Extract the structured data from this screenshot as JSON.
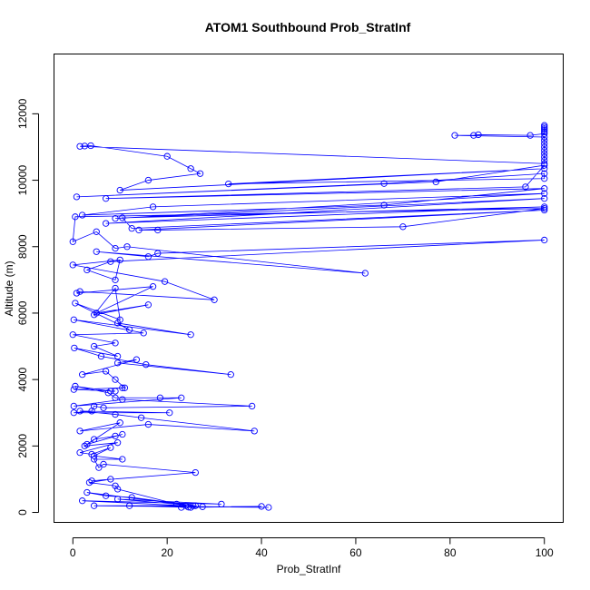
{
  "chart_data": {
    "type": "line",
    "title": "ATOM1 Southbound Prob_StratInf",
    "xlabel": "Prob_StratInf",
    "ylabel": "Altitude (m)",
    "xlim": [
      -4,
      104
    ],
    "ylim": [
      -300,
      13800
    ],
    "xticks": [
      0,
      20,
      40,
      60,
      80,
      100
    ],
    "yticks": [
      0,
      2000,
      4000,
      6000,
      8000,
      10000,
      12000
    ],
    "grid": false,
    "legend": "none",
    "markers": "open-circle",
    "color": "#0000ff",
    "series": [
      {
        "points": [
          [
            100,
            11650
          ],
          [
            100,
            11600
          ],
          [
            100,
            11550
          ],
          [
            100,
            11500
          ],
          [
            100,
            11450
          ],
          [
            100,
            11400
          ],
          [
            97,
            11350
          ],
          [
            86,
            11370
          ],
          [
            85,
            11350
          ],
          [
            81,
            11350
          ],
          [
            100,
            11300
          ],
          [
            100,
            11200
          ],
          [
            100,
            11100
          ],
          [
            100,
            11000
          ],
          [
            100,
            10900
          ],
          [
            100,
            10800
          ],
          [
            100,
            10700
          ],
          [
            100,
            10600
          ],
          [
            100,
            10500
          ],
          [
            1.5,
            11020
          ],
          [
            2.5,
            11030
          ],
          [
            3.8,
            11040
          ],
          [
            20,
            10720
          ],
          [
            25,
            10350
          ],
          [
            27,
            10200
          ],
          [
            16,
            10000
          ],
          [
            10,
            9700
          ],
          [
            100,
            10350
          ],
          [
            33,
            9890
          ],
          [
            100,
            10050
          ],
          [
            100,
            10200
          ],
          [
            66,
            9900
          ],
          [
            0.8,
            9500
          ],
          [
            77,
            9950
          ],
          [
            100,
            10450
          ],
          [
            96,
            9800
          ],
          [
            7,
            9450
          ],
          [
            100,
            9750
          ],
          [
            66,
            9250
          ],
          [
            2,
            8950
          ],
          [
            17,
            9200
          ],
          [
            100,
            9600
          ],
          [
            9,
            8850
          ],
          [
            100,
            9450
          ],
          [
            7,
            8700
          ],
          [
            100,
            9200
          ],
          [
            10.5,
            8870
          ],
          [
            12.5,
            8550
          ],
          [
            100,
            9100
          ],
          [
            14,
            8500
          ],
          [
            18,
            8500
          ],
          [
            70,
            8600
          ],
          [
            100,
            9150
          ],
          [
            0.5,
            8900
          ],
          [
            0,
            8150
          ],
          [
            5,
            8450
          ],
          [
            9,
            7950
          ],
          [
            11.5,
            8000
          ],
          [
            62,
            7200
          ],
          [
            5,
            7850
          ],
          [
            16,
            7700
          ],
          [
            18,
            7800
          ],
          [
            100,
            8200
          ],
          [
            8,
            7550
          ],
          [
            3,
            7300
          ],
          [
            9,
            7000
          ],
          [
            10,
            7600
          ],
          [
            0,
            7450
          ],
          [
            19.5,
            6950
          ],
          [
            30,
            6400
          ],
          [
            1.5,
            6650
          ],
          [
            0.8,
            6600
          ],
          [
            17,
            6800
          ],
          [
            5,
            6000
          ],
          [
            16,
            6250
          ],
          [
            4.5,
            5950
          ],
          [
            9,
            6750
          ],
          [
            10,
            5800
          ],
          [
            0.5,
            6300
          ],
          [
            12,
            5500
          ],
          [
            9.5,
            5700
          ],
          [
            25,
            5350
          ],
          [
            0.2,
            5800
          ],
          [
            15,
            5400
          ],
          [
            0,
            5350
          ],
          [
            9,
            5100
          ],
          [
            4.5,
            5000
          ],
          [
            9.5,
            4700
          ],
          [
            0.3,
            4950
          ],
          [
            6,
            4700
          ],
          [
            15.5,
            4450
          ],
          [
            33.5,
            4150
          ],
          [
            9.5,
            4500
          ],
          [
            13.5,
            4600
          ],
          [
            2,
            4150
          ],
          [
            7,
            4250
          ],
          [
            9,
            4000
          ],
          [
            11,
            3750
          ],
          [
            10.5,
            3750
          ],
          [
            0.2,
            3700
          ],
          [
            9,
            3650
          ],
          [
            8,
            3650
          ],
          [
            0.5,
            3800
          ],
          [
            7.5,
            3600
          ],
          [
            9,
            3450
          ],
          [
            18.5,
            3450
          ],
          [
            23,
            3450
          ],
          [
            0.2,
            3200
          ],
          [
            10.5,
            3400
          ],
          [
            38,
            3200
          ],
          [
            6.5,
            3150
          ],
          [
            4.5,
            3200
          ],
          [
            4,
            3050
          ],
          [
            0.2,
            3000
          ],
          [
            20.5,
            3000
          ],
          [
            1.5,
            3050
          ],
          [
            9,
            2950
          ],
          [
            14.5,
            2850
          ],
          [
            38.5,
            2450
          ],
          [
            16,
            2650
          ],
          [
            1.5,
            2450
          ],
          [
            10,
            2700
          ],
          [
            3,
            2050
          ],
          [
            10.5,
            2350
          ],
          [
            9,
            2300
          ],
          [
            4.5,
            2200
          ],
          [
            2.5,
            2000
          ],
          [
            9.5,
            2100
          ],
          [
            1.5,
            1800
          ],
          [
            4,
            1750
          ],
          [
            8,
            1950
          ],
          [
            4.5,
            1700
          ],
          [
            10.5,
            1600
          ],
          [
            4.5,
            1600
          ],
          [
            5.5,
            1350
          ],
          [
            6.5,
            1450
          ],
          [
            26,
            1200
          ],
          [
            4,
            950
          ],
          [
            8,
            1000
          ],
          [
            3.5,
            900
          ],
          [
            9,
            800
          ],
          [
            9.5,
            700
          ],
          [
            22,
            250
          ],
          [
            25.5,
            200
          ],
          [
            3,
            600
          ],
          [
            7,
            500
          ],
          [
            12.5,
            450
          ],
          [
            26,
            200
          ],
          [
            9.5,
            400
          ],
          [
            31.5,
            250
          ],
          [
            2,
            350
          ],
          [
            24,
            200
          ],
          [
            4.5,
            200
          ],
          [
            41.5,
            150
          ],
          [
            12,
            200
          ],
          [
            25,
            150
          ],
          [
            40,
            180
          ],
          [
            27.5,
            170
          ],
          [
            24.5,
            160
          ],
          [
            23,
            150
          ]
        ]
      }
    ]
  }
}
